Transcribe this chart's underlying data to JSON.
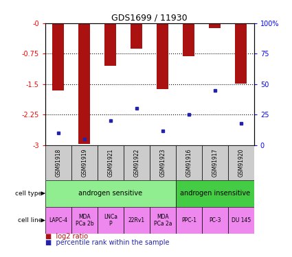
{
  "title": "GDS1699 / 11930",
  "samples": [
    "GSM91918",
    "GSM91919",
    "GSM91921",
    "GSM91922",
    "GSM91923",
    "GSM91916",
    "GSM91917",
    "GSM91920"
  ],
  "log2_ratio": [
    -1.65,
    -2.97,
    -1.05,
    -0.62,
    -1.62,
    -0.82,
    -0.12,
    -1.48
  ],
  "percentile_rank": [
    10,
    5,
    20,
    30,
    12,
    25,
    45,
    18
  ],
  "ylim_left": [
    -3,
    0
  ],
  "ylim_right": [
    0,
    100
  ],
  "bar_color": "#AA1111",
  "dot_color": "#2222AA",
  "cell_type_sensitive": "androgen sensitive",
  "cell_type_insensitive": "androgen insensitive",
  "cell_lines": [
    "LAPC-4",
    "MDA\nPCa 2b",
    "LNCa\nP",
    "22Rv1",
    "MDA\nPCa 2a",
    "PPC-1",
    "PC-3",
    "DU 145"
  ],
  "sensitive_color": "#90EE90",
  "insensitive_color": "#44CC44",
  "cell_line_color": "#EE88EE",
  "sample_bg_color": "#CCCCCC",
  "n_sensitive": 5,
  "n_insensitive": 3,
  "left_yticks": [
    0,
    -0.75,
    -1.5,
    -2.25,
    -3
  ],
  "left_yticklabels": [
    "-0",
    "-0.75",
    "-1.5",
    "-2.25",
    "-3"
  ],
  "right_yticks": [
    0,
    25,
    50,
    75,
    100
  ],
  "right_yticklabels": [
    "0",
    "25",
    "50",
    "75",
    "100%"
  ],
  "gridlines": [
    -0.75,
    -1.5,
    -2.25
  ],
  "legend_red": "log2 ratio",
  "legend_blue": "percentile rank within the sample"
}
